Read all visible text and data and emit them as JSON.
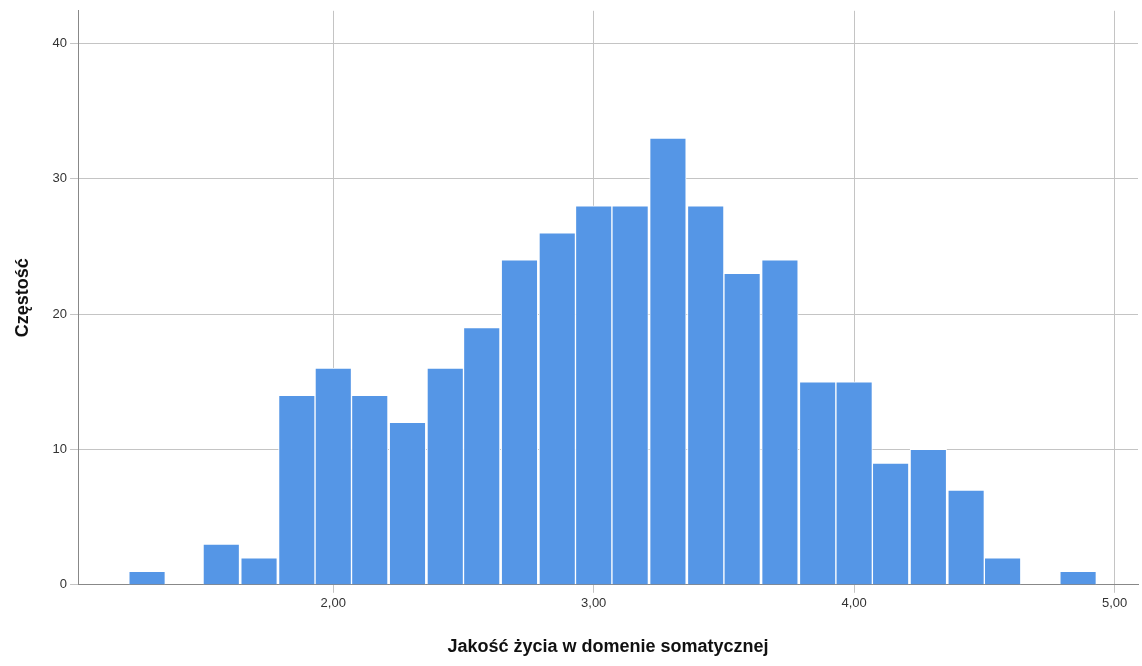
{
  "chart_data": {
    "type": "histogram",
    "xlabel": "Jakość życia w domenie somatycznej",
    "ylabel": "Częstość",
    "bins": [
      1.21,
      1.36,
      1.5,
      1.64,
      1.79,
      1.93,
      2.07,
      2.21,
      2.36,
      2.5,
      2.64,
      2.79,
      2.93,
      3.07,
      3.21,
      3.36,
      3.5,
      3.64,
      3.79,
      3.93,
      4.07,
      4.21,
      4.36,
      4.5,
      4.64,
      4.79,
      4.93
    ],
    "values": [
      1,
      0,
      3,
      2,
      14,
      16,
      14,
      12,
      16,
      19,
      24,
      26,
      28,
      28,
      33,
      28,
      23,
      24,
      15,
      15,
      9,
      10,
      7,
      2,
      0,
      1
    ],
    "color": "#5596e6",
    "xlim": [
      1.02,
      5.09
    ],
    "ylim": [
      0,
      42.4
    ],
    "xticks": [
      {
        "value": 2,
        "label": "2,00"
      },
      {
        "value": 3,
        "label": "3,00"
      },
      {
        "value": 4,
        "label": "4,00"
      },
      {
        "value": 5,
        "label": "5,00"
      }
    ],
    "yticks": [
      0,
      10,
      20,
      30,
      40
    ],
    "grid": true,
    "legend": false
  }
}
